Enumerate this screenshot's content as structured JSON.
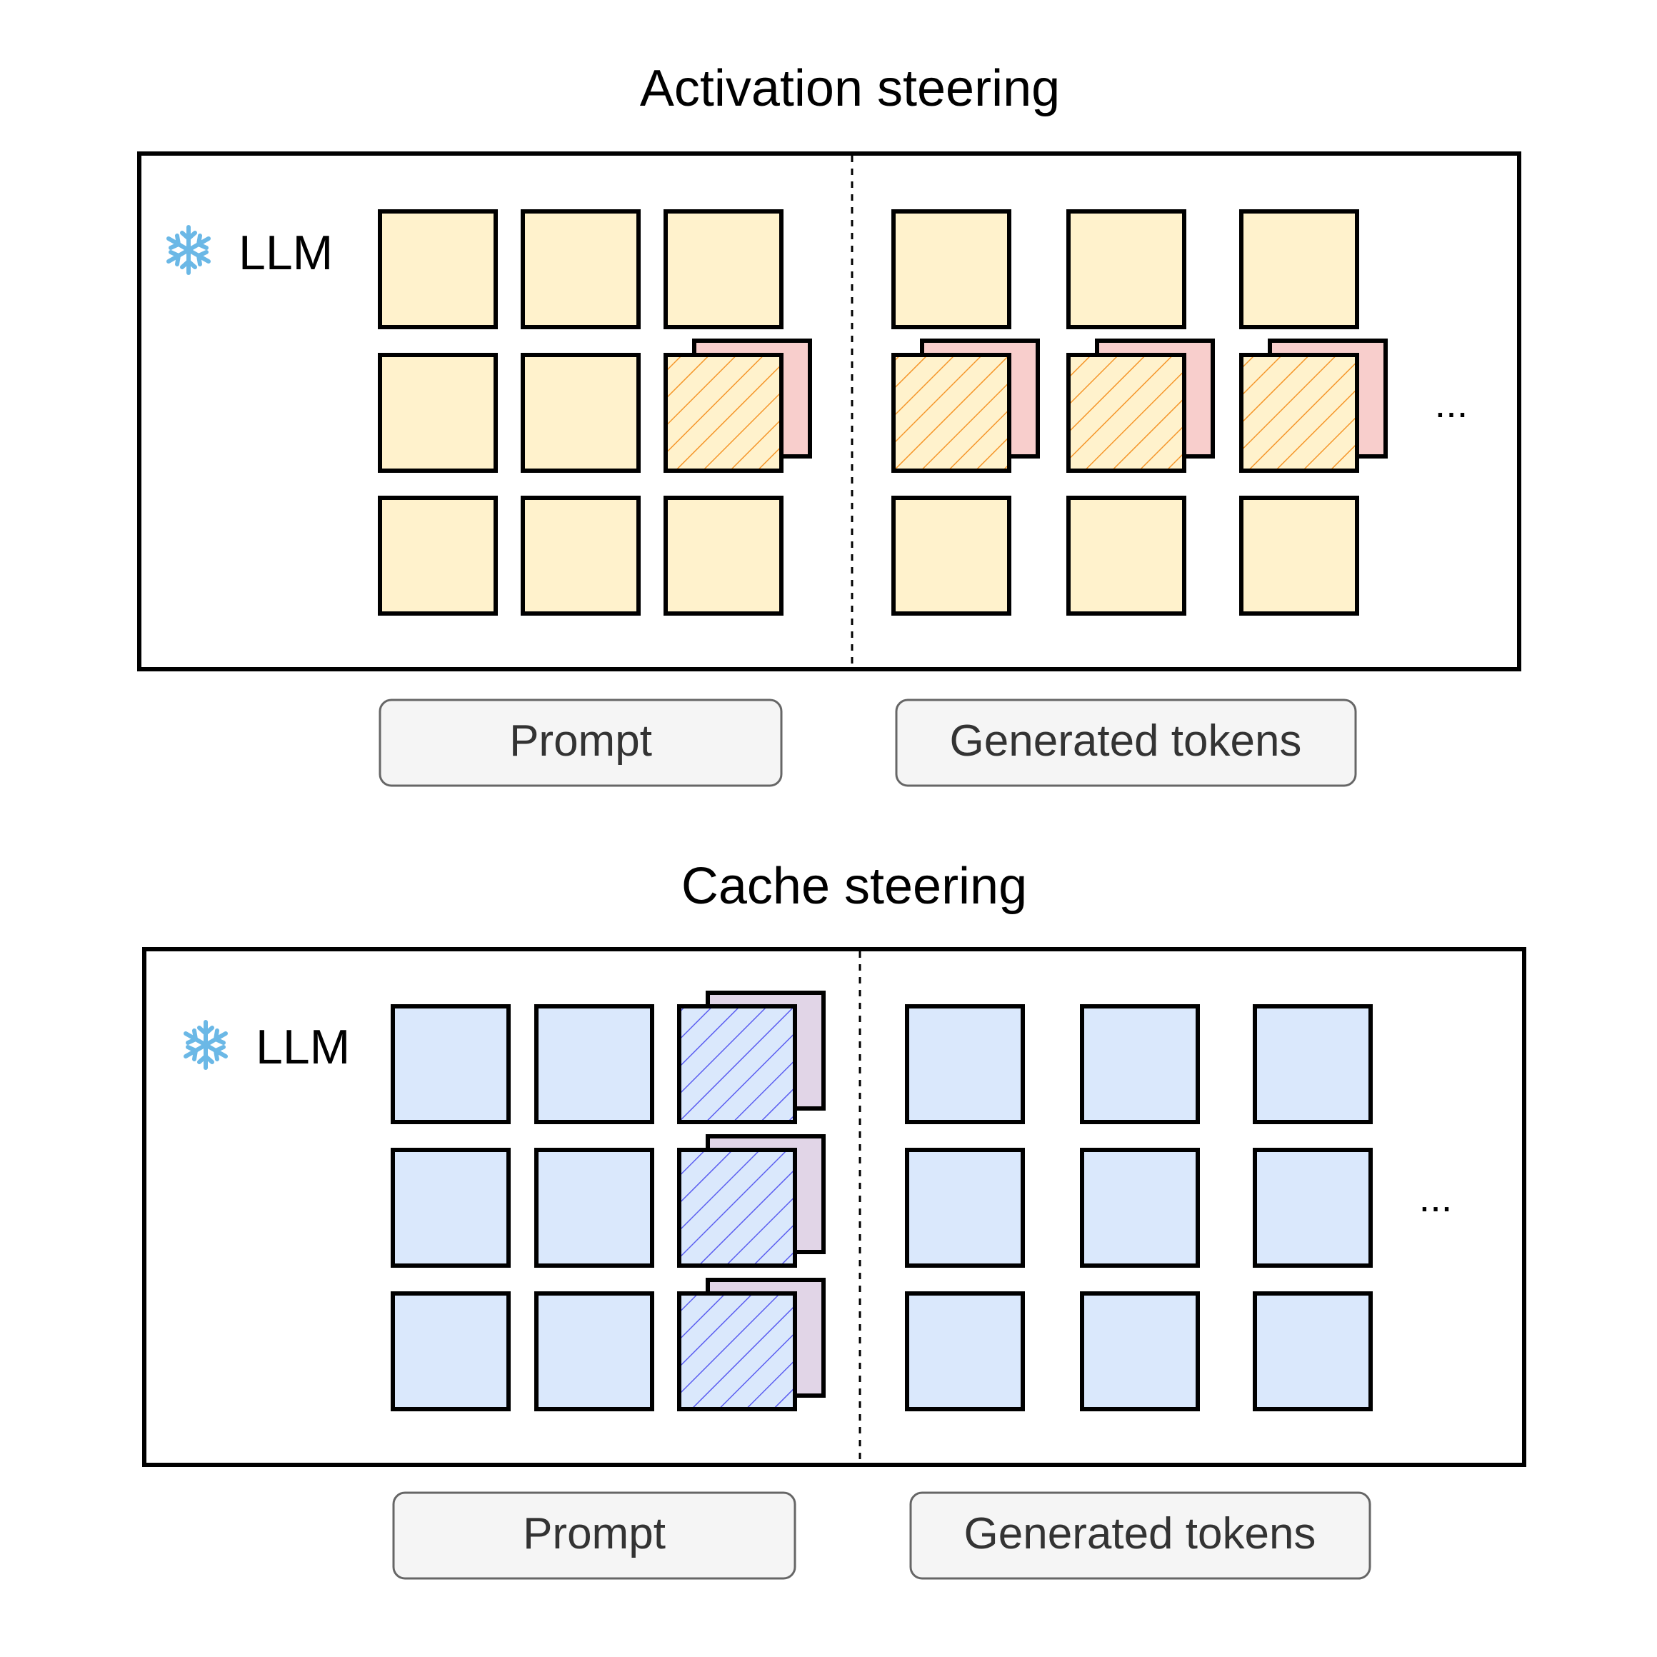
{
  "panels": [
    {
      "id": "activation",
      "title": "Activation steering",
      "model_label": "LLM",
      "model_icon": "snowflake-icon",
      "prompt_label": "Prompt",
      "generated_label": "Generated tokens",
      "ellipsis": "...",
      "colors": {
        "cell_fill": "#fff2cc",
        "steer_fill": "#f8cecc",
        "hatch": "#f5962a"
      },
      "steered_prompt_cells": [
        [
          1,
          2
        ]
      ],
      "steered_generated_rows": [
        1
      ]
    },
    {
      "id": "cache",
      "title": "Cache steering",
      "model_label": "LLM",
      "model_icon": "snowflake-icon",
      "prompt_label": "Prompt",
      "generated_label": "Generated tokens",
      "ellipsis": "...",
      "colors": {
        "cell_fill": "#dae8fc",
        "steer_fill": "#e1d5e7",
        "hatch": "#5b5ef0"
      },
      "steered_prompt_cells": [
        [
          0,
          2
        ],
        [
          1,
          2
        ],
        [
          2,
          2
        ]
      ],
      "steered_generated_rows": []
    }
  ],
  "legend_colors": {
    "outline": "#000000",
    "label_box_fill": "#f5f5f5",
    "label_box_stroke": "#666666",
    "label_text": "#333333"
  }
}
